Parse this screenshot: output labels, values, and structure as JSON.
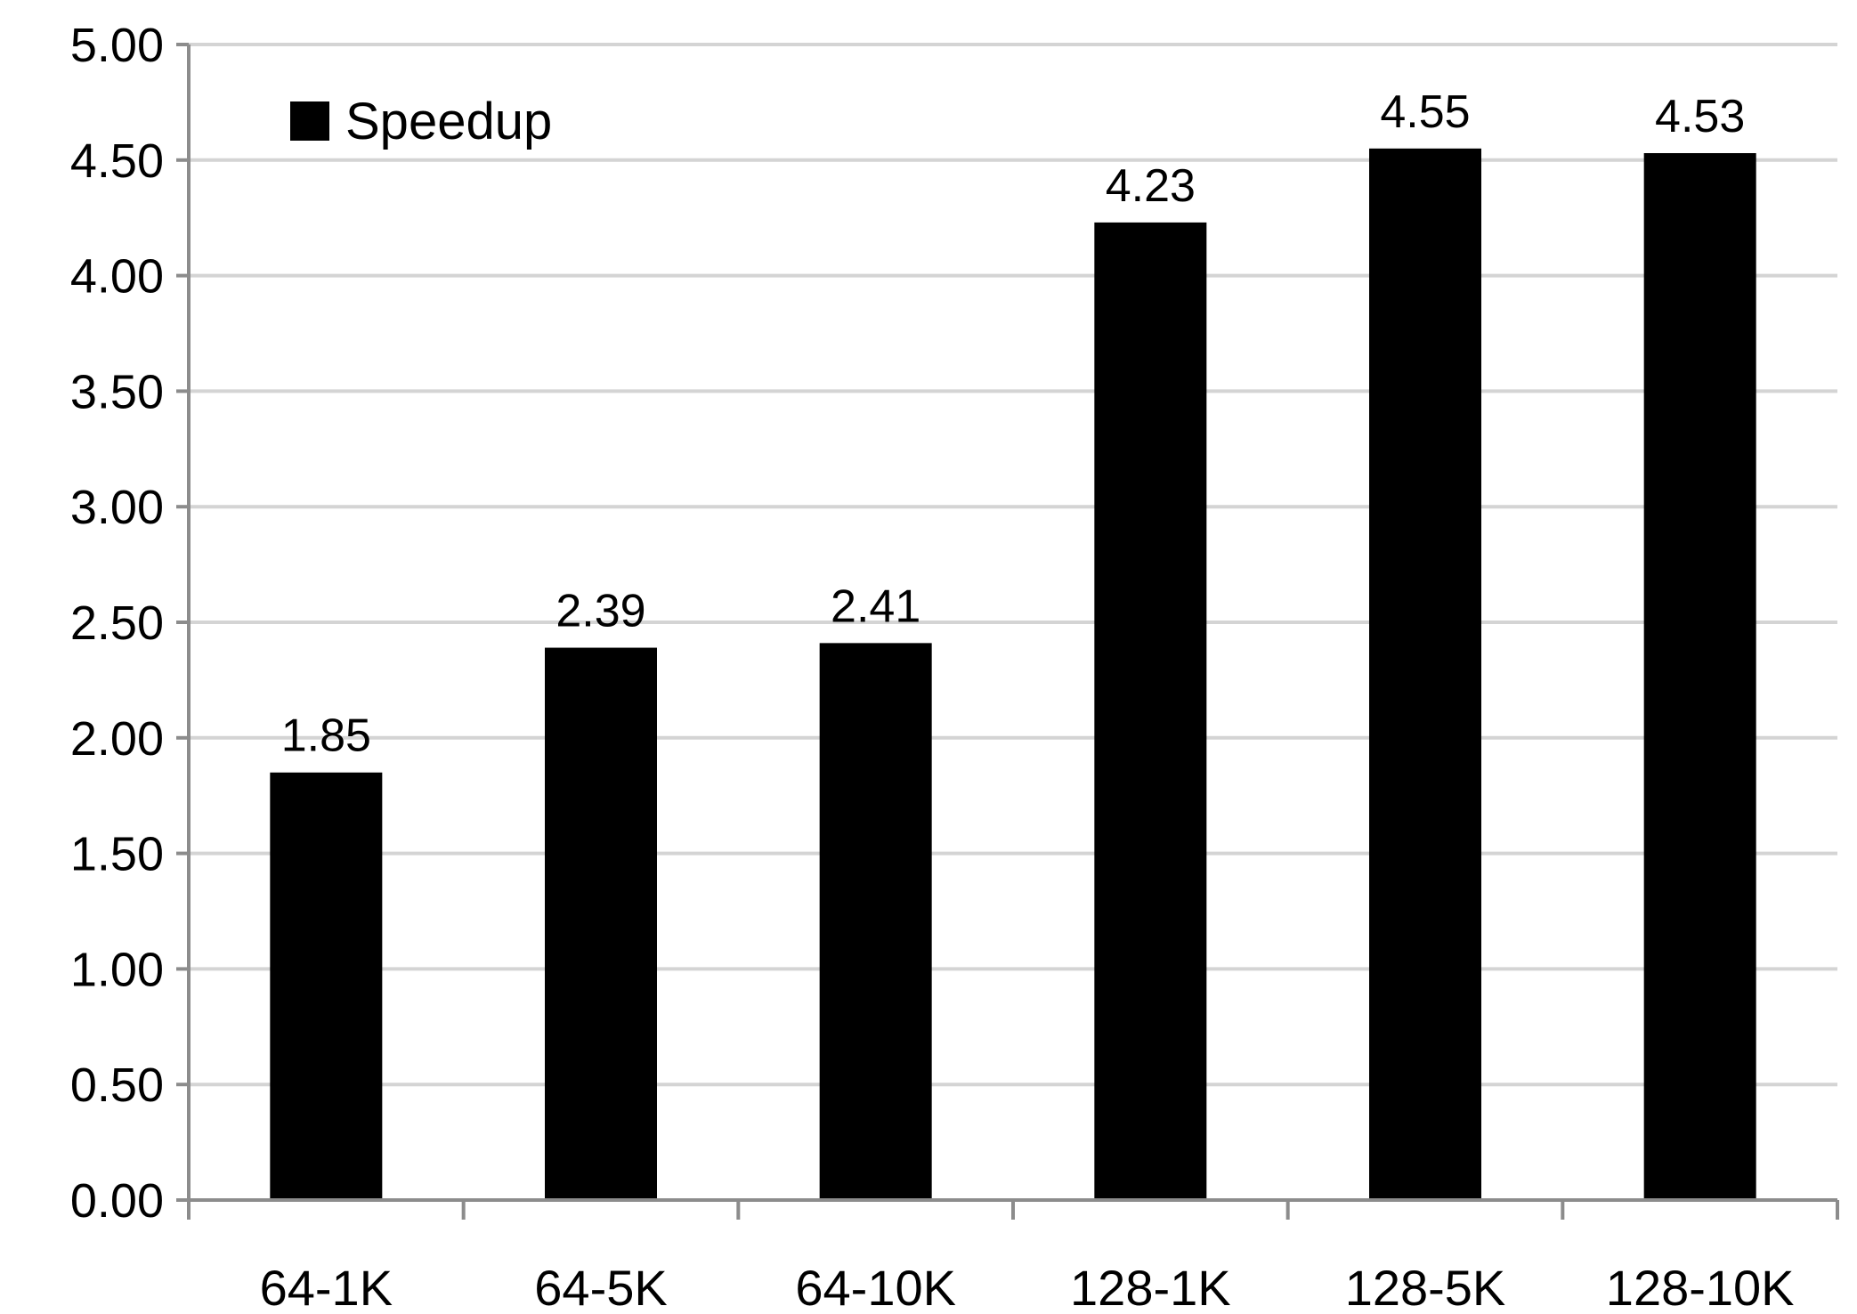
{
  "chart_data": {
    "type": "bar",
    "title": "",
    "xlabel": "",
    "ylabel": "",
    "categories": [
      "64-1K",
      "64-5K",
      "64-10K",
      "128-1K",
      "128-5K",
      "128-10K"
    ],
    "series": [
      {
        "name": "Speedup",
        "color": "#000000",
        "values": [
          1.85,
          2.39,
          2.41,
          4.23,
          4.55,
          4.53
        ]
      }
    ],
    "data_labels": [
      "1.85",
      "2.39",
      "2.41",
      "4.23",
      "4.55",
      "4.53"
    ],
    "ylim": [
      0,
      5
    ],
    "yticks": [
      0,
      0.5,
      1,
      1.5,
      2,
      2.5,
      3,
      3.5,
      4,
      4.5,
      5
    ],
    "ytick_labels": [
      "0.00",
      "0.50",
      "1.00",
      "1.50",
      "2.00",
      "2.50",
      "3.00",
      "3.50",
      "4.00",
      "4.50",
      "5.00"
    ],
    "grid": true,
    "legend": {
      "position": "top-left",
      "entries": [
        "Speedup"
      ]
    }
  }
}
